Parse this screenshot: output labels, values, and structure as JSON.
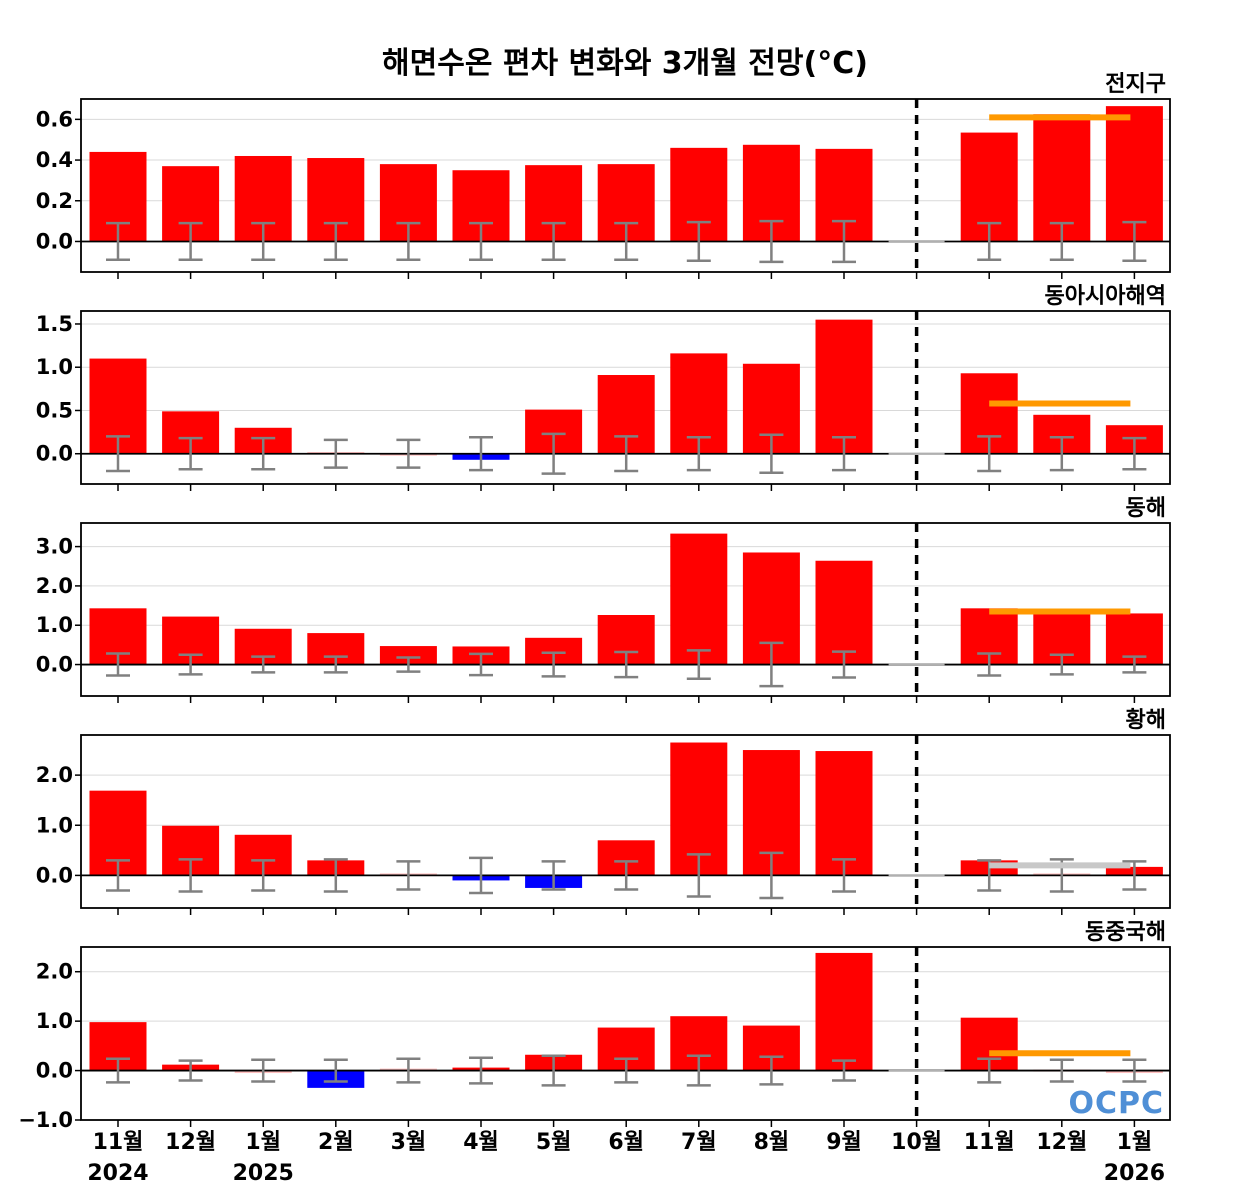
{
  "chart_data": {
    "type": "bar",
    "title": "해면수온 편차 변화와 3개월 전망(°C)",
    "categories": [
      "11월",
      "12월",
      "1월",
      "2월",
      "3월",
      "4월",
      "5월",
      "6월",
      "7월",
      "8월",
      "9월",
      "10월",
      "11월",
      "12월",
      "1월"
    ],
    "year_labels": [
      {
        "index": 0,
        "label": "2024"
      },
      {
        "index": 2,
        "label": "2025"
      },
      {
        "index": 14,
        "label": "2026"
      }
    ],
    "forecast_divider_after": "10월",
    "colors": {
      "positive": "#ff0000",
      "negative": "#0000ff",
      "near_zero": "#ffc0c0",
      "error_bar": "#808080",
      "outlook_line": "#ff9900",
      "outlook_neutral": "#c8c8c8"
    },
    "panels": [
      {
        "name": "전지구",
        "values": [
          0.44,
          0.37,
          0.42,
          0.41,
          0.38,
          0.35,
          0.375,
          0.38,
          0.46,
          0.475,
          0.455,
          null,
          0.535,
          0.625,
          0.665
        ],
        "error": [
          0.09,
          0.09,
          0.09,
          0.09,
          0.09,
          0.09,
          0.09,
          0.09,
          0.095,
          0.1,
          0.1,
          null,
          0.09,
          0.09,
          0.095
        ],
        "outlook": {
          "value": 0.61,
          "color": "#ff9900"
        },
        "ylim": [
          -0.15,
          0.7
        ],
        "ticks": [
          0.0,
          0.2,
          0.4,
          0.6
        ],
        "tick_labels": [
          "0.0",
          "0.2",
          "0.4",
          "0.6"
        ]
      },
      {
        "name": "동아시아해역",
        "values": [
          1.1,
          0.49,
          0.3,
          0.02,
          0.0,
          -0.07,
          0.51,
          0.91,
          1.16,
          1.04,
          1.55,
          null,
          0.93,
          0.45,
          0.33
        ],
        "error": [
          0.2,
          0.18,
          0.18,
          0.16,
          0.16,
          0.19,
          0.23,
          0.2,
          0.19,
          0.22,
          0.19,
          null,
          0.2,
          0.19,
          0.18
        ],
        "outlook": {
          "value": 0.58,
          "color": "#ff9900"
        },
        "ylim": [
          -0.35,
          1.65
        ],
        "ticks": [
          0.0,
          0.5,
          1.0,
          1.5
        ],
        "tick_labels": [
          "0.0",
          "0.5",
          "1.0",
          "1.5"
        ]
      },
      {
        "name": "동해",
        "values": [
          1.43,
          1.22,
          0.91,
          0.8,
          0.47,
          0.46,
          0.68,
          1.26,
          3.33,
          2.85,
          2.64,
          null,
          1.43,
          1.37,
          1.3
        ],
        "error": [
          0.28,
          0.25,
          0.2,
          0.2,
          0.18,
          0.27,
          0.3,
          0.32,
          0.36,
          0.55,
          0.33,
          null,
          0.28,
          0.25,
          0.2
        ],
        "outlook": {
          "value": 1.35,
          "color": "#ff9900"
        },
        "ylim": [
          -0.8,
          3.6
        ],
        "ticks": [
          0.0,
          1.0,
          2.0,
          3.0
        ],
        "tick_labels": [
          "0.0",
          "1.0",
          "2.0",
          "3.0"
        ]
      },
      {
        "name": "황해",
        "values": [
          1.69,
          0.99,
          0.81,
          0.3,
          0.04,
          -0.1,
          -0.25,
          0.7,
          2.65,
          2.5,
          2.48,
          null,
          0.3,
          0.04,
          0.17
        ],
        "error": [
          0.3,
          0.32,
          0.3,
          0.32,
          0.28,
          0.35,
          0.28,
          0.28,
          0.42,
          0.45,
          0.32,
          null,
          0.3,
          0.32,
          0.28
        ],
        "outlook": {
          "value": 0.2,
          "color": "#c8c8c8"
        },
        "ylim": [
          -0.65,
          2.8
        ],
        "ticks": [
          0.0,
          1.0,
          2.0
        ],
        "tick_labels": [
          "0.0",
          "1.0",
          "2.0"
        ]
      },
      {
        "name": "동중국해",
        "values": [
          0.98,
          0.12,
          -0.05,
          -0.35,
          0.04,
          0.06,
          0.32,
          0.87,
          1.1,
          0.91,
          2.38,
          null,
          1.07,
          0.02,
          -0.05
        ],
        "error": [
          0.24,
          0.2,
          0.22,
          0.22,
          0.24,
          0.26,
          0.3,
          0.24,
          0.3,
          0.28,
          0.2,
          null,
          0.24,
          0.22,
          0.22
        ],
        "outlook": {
          "value": 0.35,
          "color": "#ff9900"
        },
        "ylim": [
          -1.0,
          2.5
        ],
        "ticks": [
          -1.0,
          0.0,
          1.0,
          2.0
        ],
        "tick_labels": [
          "−1.0",
          "0.0",
          "1.0",
          "2.0"
        ]
      }
    ]
  },
  "logo": {
    "text": "OCPC"
  }
}
